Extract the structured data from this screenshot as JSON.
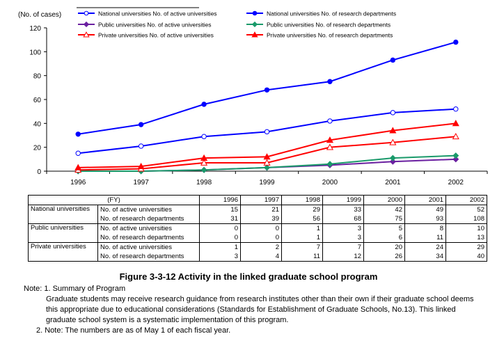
{
  "chart_data": {
    "type": "line",
    "title": "",
    "ylabel": "(No. of cases)",
    "xlabel": "",
    "ylim": [
      0,
      120
    ],
    "yticks": [
      "0",
      "20",
      "40",
      "60",
      "80",
      "100",
      "120"
    ],
    "categories": [
      "1996",
      "1997",
      "1998",
      "1999",
      "2000",
      "2001",
      "2002"
    ],
    "grid": false,
    "legend_placement": "top",
    "series": [
      {
        "name": "National universities No. of active universities",
        "values": [
          15,
          21,
          29,
          33,
          42,
          49,
          52
        ],
        "color": "#0000ff",
        "marker": "circle",
        "filled": false
      },
      {
        "name": "National universities No. of research departments",
        "values": [
          31,
          39,
          56,
          68,
          75,
          93,
          108
        ],
        "color": "#0000ff",
        "marker": "circle",
        "filled": true
      },
      {
        "name": "Public universities No. of active universities",
        "values": [
          0,
          0,
          1,
          3,
          5,
          8,
          10
        ],
        "color": "#6a1fa0",
        "marker": "diamond",
        "filled": true
      },
      {
        "name": "Public universities No. of research departments",
        "values": [
          0,
          0,
          1,
          3,
          6,
          11,
          13
        ],
        "color": "#1a9a6a",
        "marker": "diamond",
        "filled": true
      },
      {
        "name": "Private universities No. of active universities",
        "values": [
          1,
          2,
          7,
          7,
          20,
          24,
          29
        ],
        "color": "#ff0000",
        "marker": "triangle",
        "filled": false
      },
      {
        "name": "Private universities No. of research departments",
        "values": [
          3,
          4,
          11,
          12,
          26,
          34,
          40
        ],
        "color": "#ff0000",
        "marker": "triangle",
        "filled": true
      }
    ]
  },
  "table": {
    "corner": "(FY)",
    "years": [
      "1996",
      "1997",
      "1998",
      "1999",
      "2000",
      "2001",
      "2002"
    ],
    "groups": [
      {
        "name": "National universities",
        "rows": [
          {
            "label": "No. of active universities",
            "values": [
              "15",
              "21",
              "29",
              "33",
              "42",
              "49",
              "52"
            ]
          },
          {
            "label": "No. of research departments",
            "values": [
              "31",
              "39",
              "56",
              "68",
              "75",
              "93",
              "108"
            ]
          }
        ]
      },
      {
        "name": "Public universities",
        "rows": [
          {
            "label": "No. of active universities",
            "values": [
              "0",
              "0",
              "1",
              "3",
              "5",
              "8",
              "10"
            ]
          },
          {
            "label": "No. of research departments",
            "values": [
              "0",
              "0",
              "1",
              "3",
              "6",
              "11",
              "13"
            ]
          }
        ]
      },
      {
        "name": "Private universities",
        "rows": [
          {
            "label": "No. of active universities",
            "values": [
              "1",
              "2",
              "7",
              "7",
              "20",
              "24",
              "29"
            ]
          },
          {
            "label": "No. of research departments",
            "values": [
              "3",
              "4",
              "11",
              "12",
              "26",
              "34",
              "40"
            ]
          }
        ]
      }
    ]
  },
  "caption": "Figure 3-3-12  Activity in the linked graduate school program",
  "notes": {
    "line1": "Note: 1. Summary of Program",
    "body": "Graduate students may receive research guidance from research institutes other than their own if their graduate school deems this appropriate due to educational considerations (Standards for Establishment of Graduate Schools, No.13). This linked graduate school system is a systematic implementation of this program.",
    "line2": "2. Note: The numbers are as of May 1 of each fiscal year."
  }
}
